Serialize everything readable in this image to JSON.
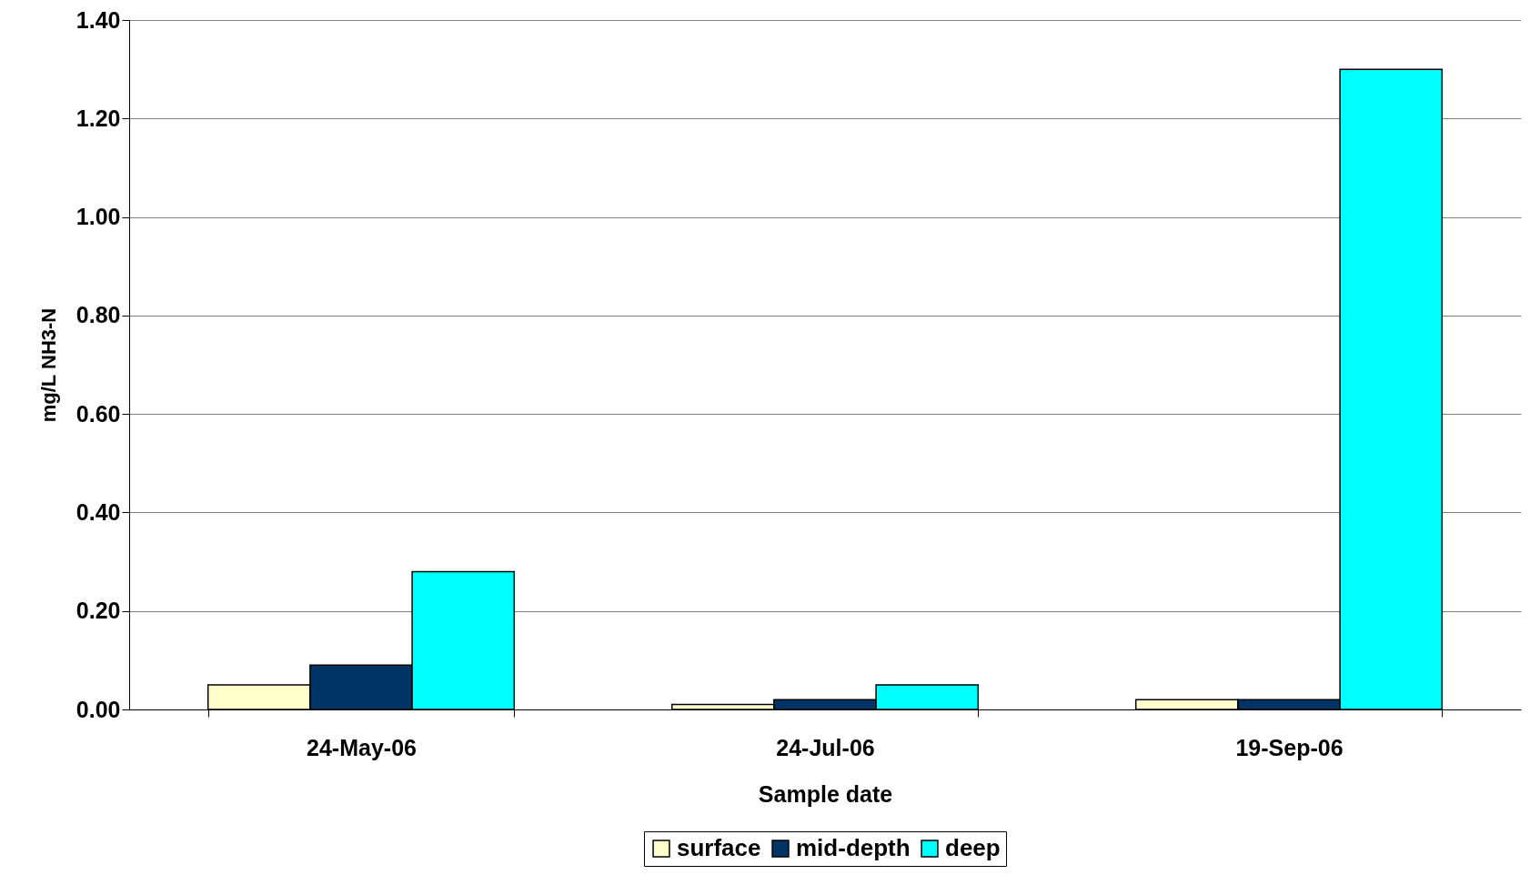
{
  "chart_data": {
    "type": "bar",
    "xlabel": "Sample date",
    "ylabel": "mg/L NH3-N",
    "categories": [
      "24-May-06",
      "24-Jul-06",
      "19-Sep-06"
    ],
    "series": [
      {
        "name": "surface",
        "color": "#ffffcc",
        "values": [
          0.05,
          0.01,
          0.02
        ]
      },
      {
        "name": "mid-depth",
        "color": "#003366",
        "values": [
          0.09,
          0.02,
          0.02
        ]
      },
      {
        "name": "deep",
        "color": "#00ffff",
        "values": [
          0.28,
          0.05,
          1.3
        ]
      }
    ],
    "ylim": [
      0,
      1.4
    ],
    "yticks": [
      {
        "value": 0,
        "label": "0.00"
      },
      {
        "value": 0.2,
        "label": "0.20"
      },
      {
        "value": 0.4,
        "label": "0.40"
      },
      {
        "value": 0.6,
        "label": "0.60"
      },
      {
        "value": 0.8,
        "label": "0.80"
      },
      {
        "value": 1.0,
        "label": "1.00"
      },
      {
        "value": 1.2,
        "label": "1.20"
      },
      {
        "value": 1.4,
        "label": "1.40"
      }
    ],
    "grid": "y",
    "legend": "bottom"
  }
}
